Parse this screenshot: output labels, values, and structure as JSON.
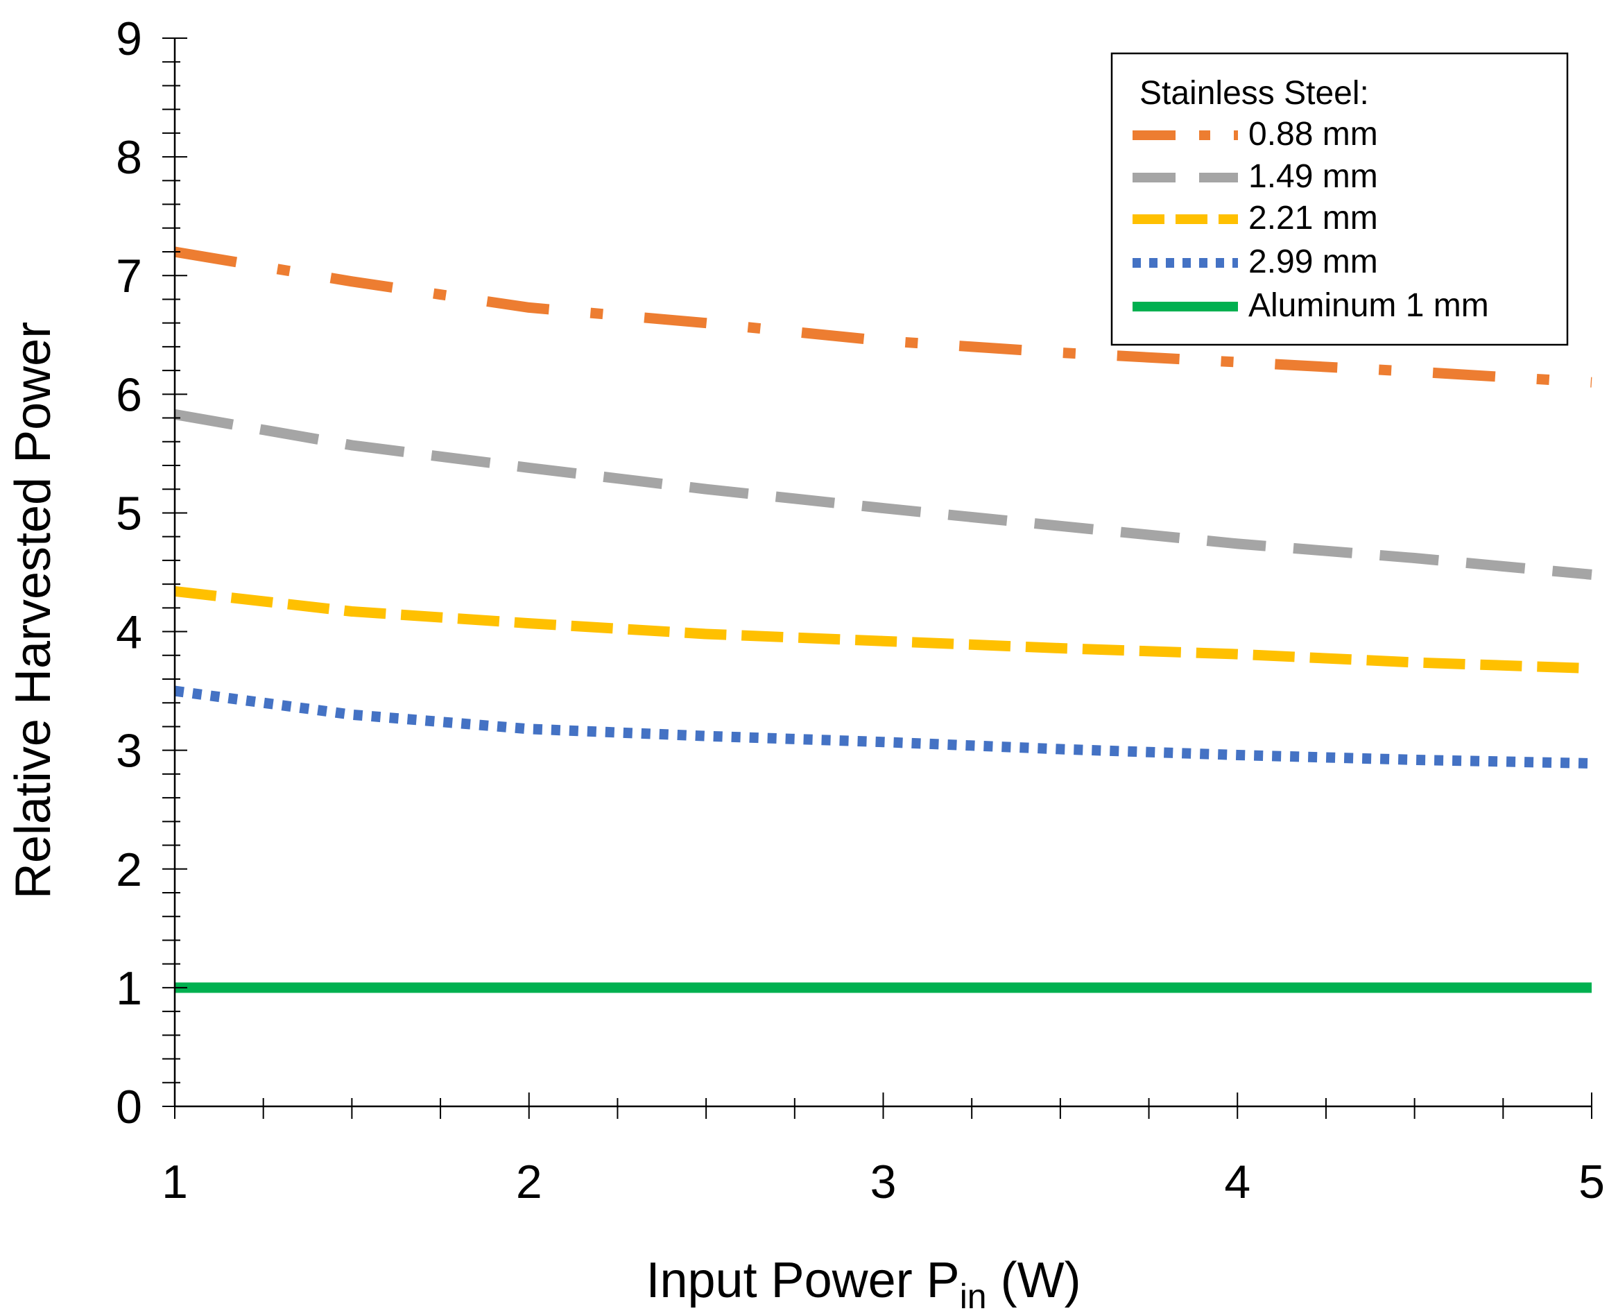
{
  "chart_data": {
    "type": "line",
    "title": "",
    "xlabel": {
      "main": "Input Power P",
      "subscript": "in",
      "unit": " (W)"
    },
    "ylabel": "Relative Harvested Power",
    "xlim": [
      1,
      5
    ],
    "ylim": [
      0,
      9
    ],
    "x_ticks": [
      "1",
      "2",
      "3",
      "4",
      "5"
    ],
    "y_ticks": [
      "0",
      "1",
      "2",
      "3",
      "4",
      "5",
      "6",
      "7",
      "8",
      "9"
    ],
    "grid": false,
    "legend": {
      "position": "top-right",
      "title": "Stainless Steel:"
    },
    "x": [
      1,
      1.5,
      2,
      2.5,
      3,
      3.5,
      4,
      4.5,
      5
    ],
    "series": [
      {
        "name": "0.88 mm",
        "color": "#ED7D31",
        "style": "dash-dot",
        "values": [
          7.2,
          6.95,
          6.73,
          6.6,
          6.45,
          6.35,
          6.27,
          6.19,
          6.1
        ]
      },
      {
        "name": "1.49 mm",
        "color": "#A5A5A5",
        "style": "dash",
        "values": [
          5.83,
          5.57,
          5.38,
          5.2,
          5.04,
          4.89,
          4.74,
          4.62,
          4.48
        ]
      },
      {
        "name": "2.21 mm",
        "color": "#FFC000",
        "style": "dash-short",
        "values": [
          4.34,
          4.17,
          4.07,
          3.98,
          3.92,
          3.86,
          3.81,
          3.74,
          3.69
        ]
      },
      {
        "name": "2.99 mm",
        "color": "#4472C4",
        "style": "dot",
        "values": [
          3.5,
          3.3,
          3.18,
          3.12,
          3.07,
          3.01,
          2.96,
          2.92,
          2.89
        ]
      },
      {
        "name": "Aluminum 1 mm",
        "color": "#00B050",
        "style": "solid",
        "values": [
          1,
          1,
          1,
          1,
          1,
          1,
          1,
          1,
          1
        ]
      }
    ]
  }
}
